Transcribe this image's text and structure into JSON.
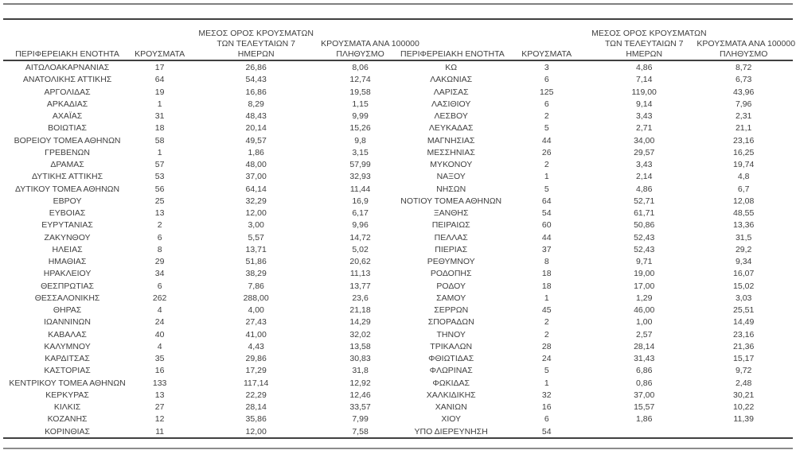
{
  "page": {
    "background": "#ffffff",
    "text_color": "#3f3f3f",
    "rule_dark_color": "#404040",
    "rule_light_color": "#7f7f7f"
  },
  "table": {
    "headers": {
      "region": "ΠΕΡΙΦΕΡΕΙΑΚΗ ΕΝΟΤΗΤΑ",
      "cases": "ΚΡΟΥΣΜΑΤΑ",
      "avg7_line1": "ΜΕΣΟΣ ΟΡΟΣ ΚΡΟΥΣΜΑΤΩΝ",
      "avg7_line2": "ΤΩΝ ΤΕΛΕΥΤΑΙΩΝ 7",
      "avg7_line3": "ΗΜΕΡΩΝ",
      "per100k_line1": "ΚΡΟΥΣΜΑΤΑ ΑΝΑ 100000",
      "per100k_line2": "ΠΛΗΘΥΣΜΟ"
    },
    "left_rows": [
      {
        "region": "ΑΙΤΩΛΟΑΚΑΡΝΑΝΙΑΣ",
        "cases": "17",
        "avg7": "26,86",
        "per100k": "8,06"
      },
      {
        "region": "ΑΝΑΤΟΛΙΚΗΣ ΑΤΤΙΚΗΣ",
        "cases": "64",
        "avg7": "54,43",
        "per100k": "12,74"
      },
      {
        "region": "ΑΡΓΟΛΙΔΑΣ",
        "cases": "19",
        "avg7": "16,86",
        "per100k": "19,58"
      },
      {
        "region": "ΑΡΚΑΔΙΑΣ",
        "cases": "1",
        "avg7": "8,29",
        "per100k": "1,15"
      },
      {
        "region": "ΑΧΑΪΑΣ",
        "cases": "31",
        "avg7": "48,43",
        "per100k": "9,99"
      },
      {
        "region": "ΒΟΙΩΤΙΑΣ",
        "cases": "18",
        "avg7": "20,14",
        "per100k": "15,26"
      },
      {
        "region": "ΒΟΡΕΙΟΥ ΤΟΜΕΑ ΑΘΗΝΩΝ",
        "cases": "58",
        "avg7": "49,57",
        "per100k": "9,8"
      },
      {
        "region": "ΓΡΕΒΕΝΩΝ",
        "cases": "1",
        "avg7": "1,86",
        "per100k": "3,15"
      },
      {
        "region": "ΔΡΑΜΑΣ",
        "cases": "57",
        "avg7": "48,00",
        "per100k": "57,99"
      },
      {
        "region": "ΔΥΤΙΚΗΣ ΑΤΤΙΚΗΣ",
        "cases": "53",
        "avg7": "37,00",
        "per100k": "32,93"
      },
      {
        "region": "ΔΥΤΙΚΟΥ ΤΟΜΕΑ ΑΘΗΝΩΝ",
        "cases": "56",
        "avg7": "64,14",
        "per100k": "11,44"
      },
      {
        "region": "ΕΒΡΟΥ",
        "cases": "25",
        "avg7": "32,29",
        "per100k": "16,9"
      },
      {
        "region": "ΕΥΒΟΙΑΣ",
        "cases": "13",
        "avg7": "12,00",
        "per100k": "6,17"
      },
      {
        "region": "ΕΥΡΥΤΑΝΙΑΣ",
        "cases": "2",
        "avg7": "3,00",
        "per100k": "9,96"
      },
      {
        "region": "ΖΑΚΥΝΘΟΥ",
        "cases": "6",
        "avg7": "5,57",
        "per100k": "14,72"
      },
      {
        "region": "ΗΛΕΙΑΣ",
        "cases": "8",
        "avg7": "13,71",
        "per100k": "5,02"
      },
      {
        "region": "ΗΜΑΘΙΑΣ",
        "cases": "29",
        "avg7": "51,86",
        "per100k": "20,62"
      },
      {
        "region": "ΗΡΑΚΛΕΙΟΥ",
        "cases": "34",
        "avg7": "38,29",
        "per100k": "11,13"
      },
      {
        "region": "ΘΕΣΠΡΩΤΙΑΣ",
        "cases": "6",
        "avg7": "7,86",
        "per100k": "13,77"
      },
      {
        "region": "ΘΕΣΣΑΛΟΝΙΚΗΣ",
        "cases": "262",
        "avg7": "288,00",
        "per100k": "23,6"
      },
      {
        "region": "ΘΗΡΑΣ",
        "cases": "4",
        "avg7": "4,00",
        "per100k": "21,18"
      },
      {
        "region": "ΙΩΑΝΝΙΝΩΝ",
        "cases": "24",
        "avg7": "27,43",
        "per100k": "14,29"
      },
      {
        "region": "ΚΑΒΑΛΑΣ",
        "cases": "40",
        "avg7": "41,00",
        "per100k": "32,02"
      },
      {
        "region": "ΚΑΛΥΜΝΟΥ",
        "cases": "4",
        "avg7": "4,43",
        "per100k": "13,58"
      },
      {
        "region": "ΚΑΡΔΙΤΣΑΣ",
        "cases": "35",
        "avg7": "29,86",
        "per100k": "30,83"
      },
      {
        "region": "ΚΑΣΤΟΡΙΑΣ",
        "cases": "16",
        "avg7": "17,29",
        "per100k": "31,8"
      },
      {
        "region": "ΚΕΝΤΡΙΚΟΥ ΤΟΜΕΑ ΑΘΗΝΩΝ",
        "cases": "133",
        "avg7": "117,14",
        "per100k": "12,92"
      },
      {
        "region": "ΚΕΡΚΥΡΑΣ",
        "cases": "13",
        "avg7": "22,29",
        "per100k": "12,46"
      },
      {
        "region": "ΚΙΛΚΙΣ",
        "cases": "27",
        "avg7": "28,14",
        "per100k": "33,57"
      },
      {
        "region": "ΚΟΖΑΝΗΣ",
        "cases": "12",
        "avg7": "35,86",
        "per100k": "7,99"
      },
      {
        "region": "ΚΟΡΙΝΘΙΑΣ",
        "cases": "11",
        "avg7": "12,00",
        "per100k": "7,58"
      }
    ],
    "right_rows": [
      {
        "region": "ΚΩ",
        "cases": "3",
        "avg7": "4,86",
        "per100k": "8,72"
      },
      {
        "region": "ΛΑΚΩΝΙΑΣ",
        "cases": "6",
        "avg7": "7,14",
        "per100k": "6,73"
      },
      {
        "region": "ΛΑΡΙΣΑΣ",
        "cases": "125",
        "avg7": "119,00",
        "per100k": "43,96"
      },
      {
        "region": "ΛΑΣΙΘΙΟΥ",
        "cases": "6",
        "avg7": "9,14",
        "per100k": "7,96"
      },
      {
        "region": "ΛΕΣΒΟΥ",
        "cases": "2",
        "avg7": "3,43",
        "per100k": "2,31"
      },
      {
        "region": "ΛΕΥΚΑΔΑΣ",
        "cases": "5",
        "avg7": "2,71",
        "per100k": "21,1"
      },
      {
        "region": "ΜΑΓΝΗΣΙΑΣ",
        "cases": "44",
        "avg7": "34,00",
        "per100k": "23,16"
      },
      {
        "region": "ΜΕΣΣΗΝΙΑΣ",
        "cases": "26",
        "avg7": "29,57",
        "per100k": "16,25"
      },
      {
        "region": "ΜΥΚΟΝΟΥ",
        "cases": "2",
        "avg7": "3,43",
        "per100k": "19,74"
      },
      {
        "region": "ΝΑΞΟΥ",
        "cases": "1",
        "avg7": "2,14",
        "per100k": "4,8"
      },
      {
        "region": "ΝΗΣΩΝ",
        "cases": "5",
        "avg7": "4,86",
        "per100k": "6,7"
      },
      {
        "region": "ΝΟΤΙΟΥ ΤΟΜΕΑ ΑΘΗΝΩΝ",
        "cases": "64",
        "avg7": "52,71",
        "per100k": "12,08"
      },
      {
        "region": "ΞΑΝΘΗΣ",
        "cases": "54",
        "avg7": "61,71",
        "per100k": "48,55"
      },
      {
        "region": "ΠΕΙΡΑΙΩΣ",
        "cases": "60",
        "avg7": "50,86",
        "per100k": "13,36"
      },
      {
        "region": "ΠΕΛΛΑΣ",
        "cases": "44",
        "avg7": "52,43",
        "per100k": "31,5"
      },
      {
        "region": "ΠΙΕΡΙΑΣ",
        "cases": "37",
        "avg7": "52,43",
        "per100k": "29,2"
      },
      {
        "region": "ΡΕΘΥΜΝΟΥ",
        "cases": "8",
        "avg7": "9,71",
        "per100k": "9,34"
      },
      {
        "region": "ΡΟΔΟΠΗΣ",
        "cases": "18",
        "avg7": "19,00",
        "per100k": "16,07"
      },
      {
        "region": "ΡΟΔΟΥ",
        "cases": "18",
        "avg7": "17,00",
        "per100k": "15,02"
      },
      {
        "region": "ΣΑΜΟΥ",
        "cases": "1",
        "avg7": "1,29",
        "per100k": "3,03"
      },
      {
        "region": "ΣΕΡΡΩΝ",
        "cases": "45",
        "avg7": "46,00",
        "per100k": "25,51"
      },
      {
        "region": "ΣΠΟΡΑΔΩΝ",
        "cases": "2",
        "avg7": "1,00",
        "per100k": "14,49"
      },
      {
        "region": "ΤΗΝΟΥ",
        "cases": "2",
        "avg7": "2,57",
        "per100k": "23,16"
      },
      {
        "region": "ΤΡΙΚΑΛΩΝ",
        "cases": "28",
        "avg7": "28,14",
        "per100k": "21,36"
      },
      {
        "region": "ΦΘΙΩΤΙΔΑΣ",
        "cases": "24",
        "avg7": "31,43",
        "per100k": "15,17"
      },
      {
        "region": "ΦΛΩΡΙΝΑΣ",
        "cases": "5",
        "avg7": "6,86",
        "per100k": "9,72"
      },
      {
        "region": "ΦΩΚΙΔΑΣ",
        "cases": "1",
        "avg7": "0,86",
        "per100k": "2,48"
      },
      {
        "region": "ΧΑΛΚΙΔΙΚΗΣ",
        "cases": "32",
        "avg7": "37,00",
        "per100k": "30,21"
      },
      {
        "region": "ΧΑΝΙΩΝ",
        "cases": "16",
        "avg7": "15,57",
        "per100k": "10,22"
      },
      {
        "region": "ΧΙΟΥ",
        "cases": "6",
        "avg7": "1,86",
        "per100k": "11,39"
      },
      {
        "region": "ΥΠΟ ΔΙΕΡΕΥΝΗΣΗ",
        "cases": "54",
        "avg7": "",
        "per100k": ""
      }
    ]
  }
}
